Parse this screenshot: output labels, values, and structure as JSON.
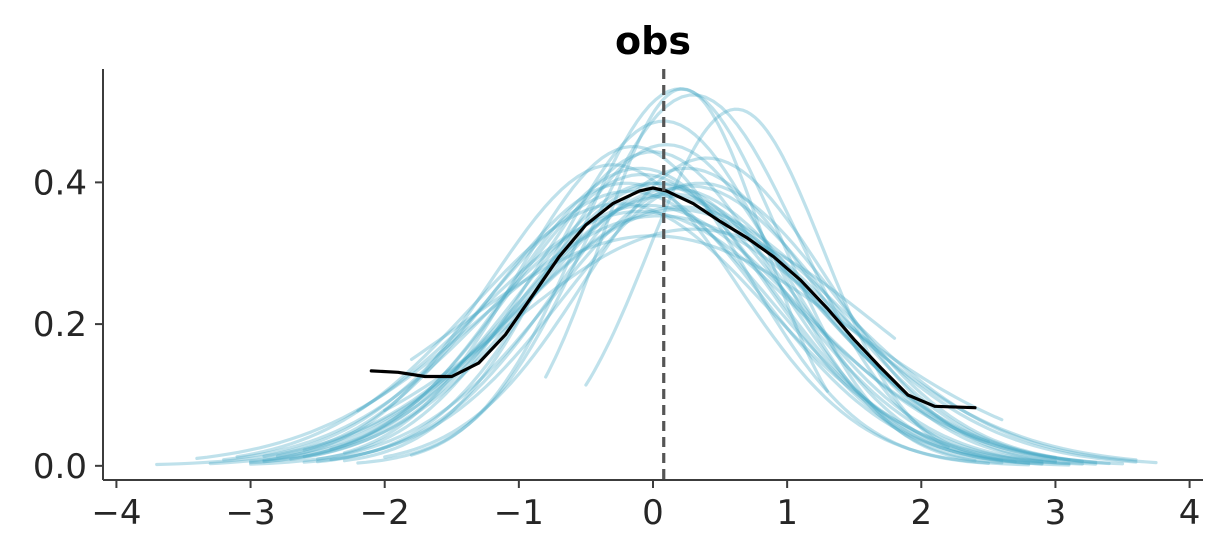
{
  "chart_data": {
    "type": "line",
    "title": "obs",
    "xlabel": "",
    "ylabel": "",
    "xlim": [
      -4.1,
      4.1
    ],
    "ylim": [
      -0.02,
      0.56
    ],
    "xticks": [
      -4,
      -3,
      -2,
      -1,
      0,
      1,
      2,
      3,
      4
    ],
    "xtick_labels": [
      "−4",
      "−3",
      "−2",
      "−1",
      "0",
      "1",
      "2",
      "3",
      "4"
    ],
    "yticks": [
      0.0,
      0.2,
      0.4
    ],
    "ytick_labels": [
      "0.0",
      "0.2",
      "0.4"
    ],
    "grid": false,
    "reference_line": {
      "x": 0.08,
      "style": "dashed",
      "color": "#555555"
    },
    "colors": {
      "predictive": "#48a9c5",
      "observed": "#000000"
    },
    "observed": {
      "x": [
        -2.1,
        -1.9,
        -1.7,
        -1.5,
        -1.3,
        -1.1,
        -0.9,
        -0.7,
        -0.5,
        -0.3,
        -0.1,
        0.0,
        0.1,
        0.3,
        0.5,
        0.7,
        0.9,
        1.1,
        1.3,
        1.5,
        1.7,
        1.9,
        2.1,
        2.4
      ],
      "y": [
        0.134,
        0.132,
        0.126,
        0.126,
        0.145,
        0.185,
        0.24,
        0.295,
        0.34,
        0.37,
        0.388,
        0.392,
        0.388,
        0.37,
        0.345,
        0.322,
        0.295,
        0.262,
        0.222,
        0.178,
        0.138,
        0.1,
        0.084,
        0.082
      ]
    },
    "predictive_samples": [
      {
        "mu": 0.0,
        "sigma": 1.0,
        "amp": 1.0,
        "x0": -2.9,
        "x1": 3.2
      },
      {
        "mu": 0.1,
        "sigma": 1.1,
        "amp": 1.05,
        "x0": -3.3,
        "x1": 3.0
      },
      {
        "mu": -0.1,
        "sigma": 0.95,
        "amp": 1.0,
        "x0": -2.6,
        "x1": 2.8
      },
      {
        "mu": 0.2,
        "sigma": 1.2,
        "amp": 1.1,
        "x0": -3.7,
        "x1": 3.75
      },
      {
        "mu": -0.2,
        "sigma": 1.0,
        "amp": 1.0,
        "x0": -2.8,
        "x1": 2.6
      },
      {
        "mu": 0.3,
        "sigma": 0.8,
        "amp": 1.05,
        "x0": -2.2,
        "x1": 3.1
      },
      {
        "mu": 0.0,
        "sigma": 0.9,
        "amp": 1.0,
        "x0": -2.5,
        "x1": 2.9
      },
      {
        "mu": 0.15,
        "sigma": 1.05,
        "amp": 1.03,
        "x0": -3.0,
        "x1": 3.4
      },
      {
        "mu": -0.05,
        "sigma": 1.15,
        "amp": 1.06,
        "x0": -3.2,
        "x1": 3.1
      },
      {
        "mu": 0.25,
        "sigma": 0.95,
        "amp": 1.0,
        "x0": -2.4,
        "x1": 3.3
      },
      {
        "mu": -0.15,
        "sigma": 0.85,
        "amp": 0.96,
        "x0": -2.3,
        "x1": 2.5
      },
      {
        "mu": 0.05,
        "sigma": 1.3,
        "amp": 1.15,
        "x0": -3.4,
        "x1": 3.6
      },
      {
        "mu": 0.35,
        "sigma": 1.0,
        "amp": 1.0,
        "x0": -2.6,
        "x1": 3.5
      },
      {
        "mu": -0.25,
        "sigma": 1.1,
        "amp": 1.02,
        "x0": -3.1,
        "x1": 2.9
      },
      {
        "mu": 0.1,
        "sigma": 0.88,
        "amp": 1.0,
        "x0": -2.5,
        "x1": 2.7
      },
      {
        "mu": 0.2,
        "sigma": 0.75,
        "amp": 1.0,
        "x0": -1.8,
        "x1": 2.4
      },
      {
        "mu": 0.62,
        "sigma": 0.65,
        "amp": 0.82,
        "x0": -0.5,
        "x1": 2.2
      },
      {
        "mu": 0.22,
        "sigma": 0.6,
        "amp": 0.8,
        "x0": -0.8,
        "x1": 1.3
      },
      {
        "mu": 0.0,
        "sigma": 1.45,
        "amp": 1.18,
        "x0": -1.8,
        "x1": 2.6
      },
      {
        "mu": 0.3,
        "sigma": 1.35,
        "amp": 1.13,
        "x0": -2.0,
        "x1": 1.8
      },
      {
        "mu": -0.3,
        "sigma": 0.92,
        "amp": 0.98,
        "x0": -2.9,
        "x1": 2.8
      },
      {
        "mu": 0.4,
        "sigma": 0.9,
        "amp": 0.98,
        "x0": -2.0,
        "x1": 3.0
      },
      {
        "mu": -0.1,
        "sigma": 1.2,
        "amp": 1.08,
        "x0": -2.2,
        "x1": 2.5
      },
      {
        "mu": 0.05,
        "sigma": 1.0,
        "amp": 1.0,
        "x0": -2.7,
        "x1": 3.0
      },
      {
        "mu": 0.12,
        "sigma": 1.08,
        "amp": 1.04,
        "x0": -3.0,
        "x1": 3.2
      },
      {
        "mu": -0.08,
        "sigma": 0.97,
        "amp": 1.0,
        "x0": -2.4,
        "x1": 2.9
      },
      {
        "mu": 0.18,
        "sigma": 1.18,
        "amp": 1.07,
        "x0": -2.6,
        "x1": 3.6
      },
      {
        "mu": -0.18,
        "sigma": 1.05,
        "amp": 1.02,
        "x0": -2.9,
        "x1": 3.1
      },
      {
        "mu": 0.28,
        "sigma": 1.02,
        "amp": 1.01,
        "x0": -3.0,
        "x1": 3.3
      },
      {
        "mu": 0.08,
        "sigma": 0.82,
        "amp": 1.0,
        "x0": -2.3,
        "x1": 2.6
      }
    ]
  }
}
